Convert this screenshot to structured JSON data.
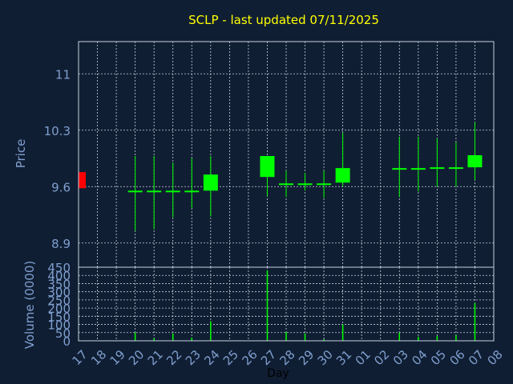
{
  "chart_data": [
    {
      "type": "candlestick",
      "title": "SCLP - last updated 07/11/2025",
      "ylabel": "Price",
      "xlabel": "",
      "yticks": [
        "11",
        "10.3",
        "9.6",
        "8.9"
      ],
      "ylim": [
        8.6,
        11.4
      ],
      "grid": true,
      "colors": {
        "up": "#00ff00",
        "down": "#ff0000",
        "title": "#ffff00",
        "axis_text": "#7f9fcf",
        "grid": "#c8d2e0"
      },
      "x": [
        "17",
        "18",
        "19",
        "20",
        "21",
        "22",
        "23",
        "24",
        "25",
        "26",
        "27",
        "28",
        "29",
        "30",
        "31",
        "01",
        "02",
        "03",
        "04",
        "05",
        "06",
        "07",
        "08"
      ],
      "candles": [
        {
          "x": "17",
          "open": 9.78,
          "high": 9.78,
          "low": 9.58,
          "close": 9.58
        },
        {
          "x": "20",
          "open": 9.55,
          "high": 9.98,
          "low": 9.05,
          "close": 9.55
        },
        {
          "x": "21",
          "open": 9.55,
          "high": 9.98,
          "low": 9.07,
          "close": 9.55
        },
        {
          "x": "22",
          "open": 9.55,
          "high": 9.9,
          "low": 9.22,
          "close": 9.55
        },
        {
          "x": "23",
          "open": 9.55,
          "high": 9.95,
          "low": 9.33,
          "close": 9.55
        },
        {
          "x": "24",
          "open": 9.55,
          "high": 9.98,
          "low": 9.23,
          "close": 9.75
        },
        {
          "x": "27",
          "open": 9.72,
          "high": 9.98,
          "low": 9.48,
          "close": 9.98
        },
        {
          "x": "28",
          "open": 9.64,
          "high": 9.8,
          "low": 9.47,
          "close": 9.64
        },
        {
          "x": "29",
          "open": 9.64,
          "high": 9.77,
          "low": 9.55,
          "close": 9.64
        },
        {
          "x": "30",
          "open": 9.64,
          "high": 9.8,
          "low": 9.46,
          "close": 9.64
        },
        {
          "x": "31",
          "open": 9.65,
          "high": 10.27,
          "low": 9.6,
          "close": 9.83
        },
        {
          "x": "03",
          "open": 9.83,
          "high": 10.22,
          "low": 9.47,
          "close": 9.83
        },
        {
          "x": "04",
          "open": 9.83,
          "high": 10.22,
          "low": 9.54,
          "close": 9.83
        },
        {
          "x": "05",
          "open": 9.84,
          "high": 10.2,
          "low": 9.6,
          "close": 9.84
        },
        {
          "x": "06",
          "open": 9.84,
          "high": 10.15,
          "low": 9.6,
          "close": 9.84
        },
        {
          "x": "07",
          "open": 9.84,
          "high": 10.4,
          "low": 9.68,
          "close": 9.99
        }
      ]
    },
    {
      "type": "bar",
      "title": "",
      "ylabel": "Volume (0000)",
      "xlabel": "Day",
      "yticks": [
        "450",
        "400",
        "350",
        "300",
        "250",
        "200",
        "150",
        "100",
        "50",
        "0"
      ],
      "ylim": [
        0,
        450
      ],
      "grid": true,
      "colors": {
        "bar": "#00ff00"
      },
      "categories": [
        "17",
        "18",
        "19",
        "20",
        "21",
        "22",
        "23",
        "24",
        "25",
        "26",
        "27",
        "28",
        "29",
        "30",
        "31",
        "01",
        "02",
        "03",
        "04",
        "05",
        "06",
        "07",
        "08"
      ],
      "values": [
        3,
        0,
        0,
        50,
        15,
        45,
        20,
        120,
        0,
        0,
        430,
        55,
        45,
        10,
        100,
        0,
        0,
        50,
        25,
        30,
        35,
        230,
        0
      ]
    }
  ]
}
